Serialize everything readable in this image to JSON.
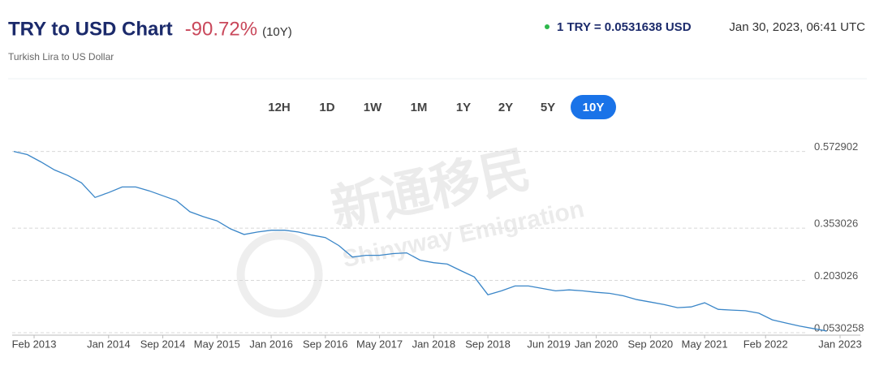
{
  "header": {
    "change": "-90.72%",
    "period": "(10Y)",
    "rate": "1 TRY = 0.0531638 USD",
    "timestamp": "Jan 30, 2023, 06:41 UTC"
  },
  "range_buttons": [
    "12H",
    "1D",
    "1W",
    "1M",
    "1Y",
    "2Y",
    "5Y",
    "10Y"
  ],
  "active_range": 7,
  "watermark": {
    "cn": "新通移民",
    "en": "Shinyway Emigration"
  },
  "chart_data": {
    "type": "line",
    "title": "TRY to USD Chart",
    "subtitle": "Turkish Lira to US Dollar",
    "x": [
      "2012-11",
      "2013-01",
      "2013-03",
      "2013-05",
      "2013-07",
      "2013-09",
      "2013-11",
      "2014-01",
      "2014-03",
      "2014-05",
      "2014-07",
      "2014-09",
      "2014-11",
      "2015-01",
      "2015-03",
      "2015-05",
      "2015-07",
      "2015-09",
      "2015-11",
      "2016-01",
      "2016-03",
      "2016-05",
      "2016-07",
      "2016-09",
      "2016-11",
      "2017-01",
      "2017-03",
      "2017-05",
      "2017-07",
      "2017-09",
      "2017-11",
      "2018-01",
      "2018-03",
      "2018-05",
      "2018-07",
      "2018-09",
      "2018-11",
      "2019-01",
      "2019-03",
      "2019-05",
      "2019-07",
      "2019-09",
      "2019-11",
      "2020-01",
      "2020-03",
      "2020-05",
      "2020-07",
      "2020-09",
      "2020-11",
      "2021-01",
      "2021-03",
      "2021-05",
      "2021-07",
      "2021-09",
      "2021-11",
      "2022-01",
      "2022-03",
      "2022-05",
      "2022-07",
      "2022-09",
      "2022-11"
    ],
    "series": [
      {
        "color": "#3a86c8",
        "values": [
          0.573,
          0.564,
          0.543,
          0.52,
          0.504,
          0.483,
          0.441,
          0.455,
          0.471,
          0.471,
          0.46,
          0.446,
          0.432,
          0.4,
          0.386,
          0.374,
          0.351,
          0.335,
          0.342,
          0.347,
          0.347,
          0.342,
          0.333,
          0.326,
          0.303,
          0.27,
          0.275,
          0.275,
          0.28,
          0.282,
          0.261,
          0.254,
          0.25,
          0.231,
          0.213,
          0.162,
          0.173,
          0.187,
          0.187,
          0.18,
          0.173,
          0.176,
          0.173,
          0.169,
          0.166,
          0.159,
          0.148,
          0.141,
          0.134,
          0.125,
          0.127,
          0.139,
          0.12,
          0.118,
          0.116,
          0.109,
          0.09,
          0.081,
          0.072,
          0.065,
          0.058
        ]
      }
    ],
    "xlim": [
      "2012-11",
      "2023-04"
    ],
    "xticks": [
      {
        "value": "2013-02",
        "label": "Feb 2013"
      },
      {
        "value": "2014-01",
        "label": "Jan 2014"
      },
      {
        "value": "2014-09",
        "label": "Sep 2014"
      },
      {
        "value": "2015-05",
        "label": "May 2015"
      },
      {
        "value": "2016-01",
        "label": "Jan 2016"
      },
      {
        "value": "2016-09",
        "label": "Sep 2016"
      },
      {
        "value": "2017-05",
        "label": "May 2017"
      },
      {
        "value": "2018-01",
        "label": "Jan 2018"
      },
      {
        "value": "2018-09",
        "label": "Sep 2018"
      },
      {
        "value": "2019-06",
        "label": "Jun 2019"
      },
      {
        "value": "2020-01",
        "label": "Jan 2020"
      },
      {
        "value": "2020-09",
        "label": "Sep 2020"
      },
      {
        "value": "2021-05",
        "label": "May 2021"
      },
      {
        "value": "2022-02",
        "label": "Feb 2022"
      },
      {
        "value": "2023-01",
        "label": "Jan 2023"
      }
    ],
    "ylim": [
      0.046,
      0.635
    ],
    "yticks": [
      0.0530258,
      0.203026,
      0.353026,
      0.572902
    ],
    "grid": true
  }
}
